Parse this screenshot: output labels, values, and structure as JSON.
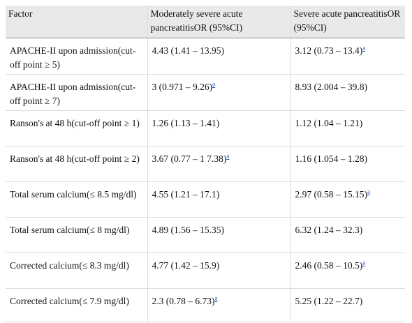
{
  "table": {
    "headers": [
      "Factor",
      "Moderately severe acute pancreatitisOR (95%CI)",
      "Severe acute pancreatitisOR (95%CI)"
    ],
    "rows": [
      {
        "factor": "APACHE-II upon admission(cut-off point ≥ 5)",
        "moderate": "4.43 (1.41 – 13.95)",
        "moderate_note": "",
        "severe": "3.12 (0.73 – 13.4)",
        "severe_note": "a"
      },
      {
        "factor": "APACHE-II upon admission(cut-off point ≥ 7)",
        "moderate": "3 (0.971 – 9.26)",
        "moderate_note": "a",
        "severe": "8.93 (2.004 – 39.8)",
        "severe_note": ""
      },
      {
        "factor": "Ranson's at 48 h(cut-off point ≥ 1)",
        "moderate": "1.26 (1.13 – 1.41)",
        "moderate_note": "",
        "severe": "1.12 (1.04 – 1.21)",
        "severe_note": ""
      },
      {
        "factor": "Ranson's at 48 h(cut-off point ≥ 2)",
        "moderate": "3.67 (0.77 – 1 7.38)",
        "moderate_note": "a",
        "severe": "1.16 (1.054 – 1.28)",
        "severe_note": ""
      },
      {
        "factor": "Total serum calcium(≤ 8.5 mg/dl)",
        "moderate": "4.55 (1.21 – 17.1)",
        "moderate_note": "",
        "severe": "2.97 (0.58 – 15.15)",
        "severe_note": "a"
      },
      {
        "factor": "Total serum calcium(≤ 8 mg/dl)",
        "moderate": "4.89 (1.56 – 15.35)",
        "moderate_note": "",
        "severe": "6.32 (1.24 – 32.3)",
        "severe_note": ""
      },
      {
        "factor": "Corrected calcium(≤ 8.3 mg/dl)",
        "moderate": "4.77 (1.42 – 15.9)",
        "moderate_note": "",
        "severe": "2.46 (0.58 – 10.5)",
        "severe_note": "a"
      },
      {
        "factor": "Corrected calcium(≤ 7.9 mg/dl)",
        "moderate": "2.3 (0.78 – 6.73)",
        "moderate_note": "a",
        "severe": "5.25 (1.22 – 22.7)",
        "severe_note": ""
      }
    ]
  },
  "colors": {
    "header_bg": "#e9e9e9",
    "footnote_link": "#1a56c9"
  }
}
